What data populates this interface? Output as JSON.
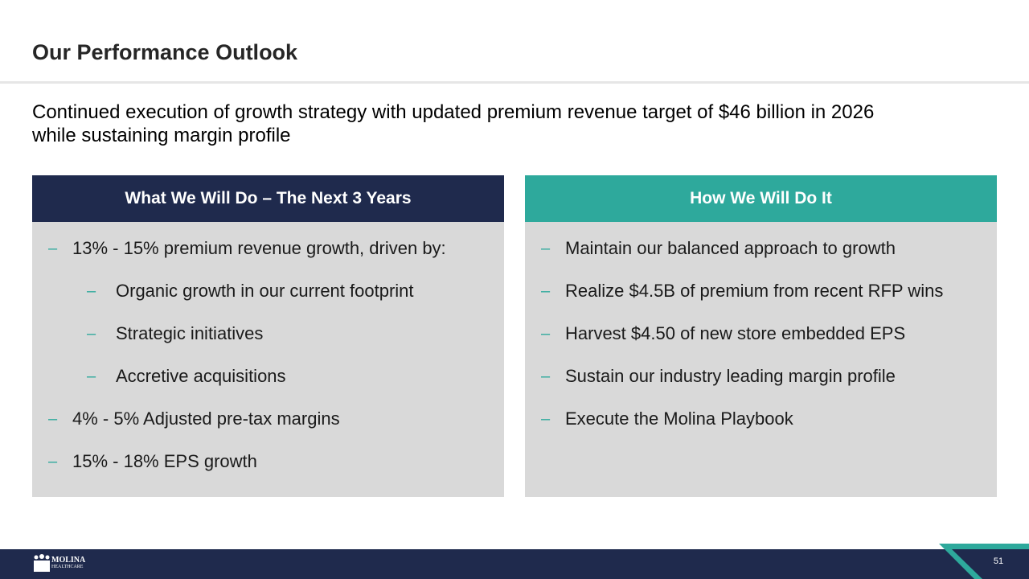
{
  "header": {
    "title": "Our Performance Outlook"
  },
  "subtitle": {
    "lines": [
      "Continued execution of growth strategy with updated premium revenue target of $46 billion in 2026",
      "while sustaining margin profile"
    ]
  },
  "panels": [
    {
      "heading": "What We Will Do – The Next 3 Years",
      "items": [
        {
          "text": "13% - 15% premium revenue growth, driven by:",
          "subitems": [
            "Organic growth in our current footprint",
            "Strategic initiatives",
            "Accretive acquisitions"
          ]
        },
        {
          "text": "4% - 5% Adjusted pre-tax margins"
        },
        {
          "text": "15% - 18% EPS growth"
        }
      ]
    },
    {
      "heading": "How We Will Do It",
      "items": [
        {
          "text": "Maintain our balanced approach to growth"
        },
        {
          "text": "Realize $4.5B of premium from recent RFP wins"
        },
        {
          "text": "Harvest $4.50 of new store embedded EPS"
        },
        {
          "text": "Sustain our industry leading margin profile"
        },
        {
          "text": "Execute the Molina Playbook"
        }
      ]
    }
  ],
  "footer": {
    "logo": {
      "name": "MOLINA",
      "tagline": "HEALTHCARE"
    },
    "page_number": "51"
  }
}
